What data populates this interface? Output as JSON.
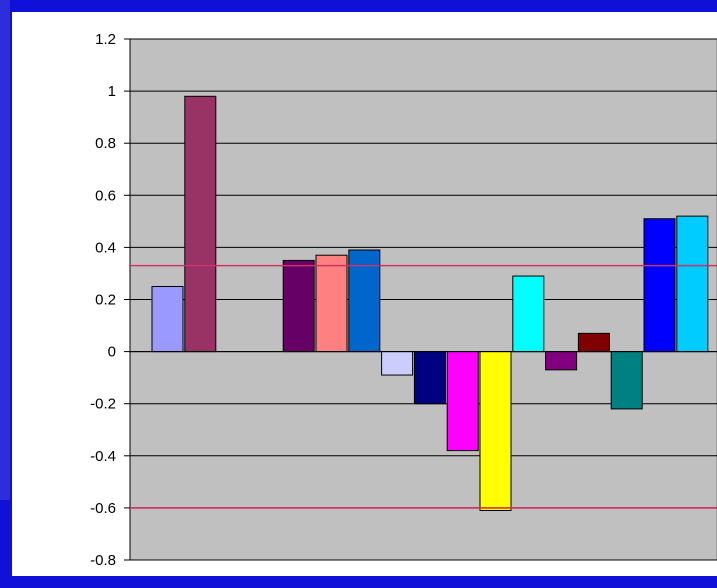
{
  "chart_data": {
    "type": "bar",
    "title": "",
    "xlabel": "",
    "ylabel": "",
    "ylim": [
      -0.8,
      1.2
    ],
    "y_ticks": [
      "1.2",
      "1",
      "0.8",
      "0.6",
      "0.4",
      "0.2",
      "0",
      "-0.2",
      "-0.4",
      "-0.6",
      "-0.8"
    ],
    "grid": true,
    "legend": "none",
    "plot_background": "#c0c0c0",
    "bars": [
      {
        "slot": 0,
        "value": 0.25,
        "color": "#9999ff"
      },
      {
        "slot": 1,
        "value": 0.98,
        "color": "#993366"
      },
      {
        "slot": 4,
        "value": 0.35,
        "color": "#660066"
      },
      {
        "slot": 5,
        "value": 0.37,
        "color": "#ff8080"
      },
      {
        "slot": 6,
        "value": 0.39,
        "color": "#0066cc"
      },
      {
        "slot": 7,
        "value": -0.09,
        "color": "#ccccff"
      },
      {
        "slot": 8,
        "value": -0.2,
        "color": "#000080"
      },
      {
        "slot": 9,
        "value": -0.38,
        "color": "#ff00ff"
      },
      {
        "slot": 10,
        "value": -0.61,
        "color": "#ffff00"
      },
      {
        "slot": 11,
        "value": 0.29,
        "color": "#00ffff"
      },
      {
        "slot": 12,
        "value": -0.07,
        "color": "#800080"
      },
      {
        "slot": 13,
        "value": 0.07,
        "color": "#800000"
      },
      {
        "slot": 14,
        "value": -0.22,
        "color": "#008080"
      },
      {
        "slot": 15,
        "value": 0.51,
        "color": "#0000ff"
      },
      {
        "slot": 16,
        "value": 0.52,
        "color": "#00ccff"
      }
    ],
    "reference_lines": [
      {
        "value": 0.33,
        "color": "#cc3366"
      },
      {
        "value": -0.6,
        "color": "#cc3366"
      }
    ]
  }
}
